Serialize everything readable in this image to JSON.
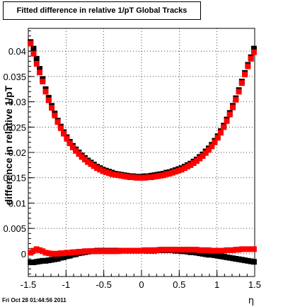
{
  "chart_data": {
    "type": "scatter",
    "title": "Fitted difference in relative 1/pT  Global Tracks",
    "xlabel": "η",
    "ylabel": "difference in relative 1/pT",
    "xlim": [
      -1.5,
      1.5
    ],
    "ylim": [
      -0.0045,
      0.0445
    ],
    "x_ticks": [
      -1.5,
      -1,
      -0.5,
      0,
      0.5,
      1,
      1.5
    ],
    "x_tick_labels": [
      "-1.5",
      "-1",
      "-0.5",
      "0",
      "0.5",
      "1",
      "1.5"
    ],
    "y_ticks": [
      0,
      0.005,
      0.01,
      0.015,
      0.02,
      0.025,
      0.03,
      0.035,
      0.04
    ],
    "y_tick_labels": [
      "0",
      "0.005",
      "0.01",
      "0.015",
      "0.02",
      "0.025",
      "0.03",
      "0.035",
      "0.04"
    ],
    "grid": true,
    "series": [
      {
        "color": "#000000",
        "x": [
          -1.47,
          -1.43,
          -1.39,
          -1.35,
          -1.31,
          -1.27,
          -1.23,
          -1.19,
          -1.15,
          -1.11,
          -1.07,
          -1.03,
          -0.99,
          -0.95,
          -0.91,
          -0.87,
          -0.83,
          -0.79,
          -0.75,
          -0.71,
          -0.67,
          -0.63,
          -0.59,
          -0.55,
          -0.51,
          -0.47,
          -0.43,
          -0.39,
          -0.35,
          -0.31,
          -0.27,
          -0.23,
          -0.19,
          -0.15,
          -0.11,
          -0.07,
          -0.03,
          0.01,
          0.05,
          0.09,
          0.13,
          0.17,
          0.21,
          0.25,
          0.29,
          0.33,
          0.37,
          0.41,
          0.45,
          0.49,
          0.53,
          0.57,
          0.61,
          0.65,
          0.69,
          0.73,
          0.77,
          0.81,
          0.85,
          0.89,
          0.93,
          0.97,
          1.01,
          1.05,
          1.09,
          1.13,
          1.17,
          1.21,
          1.25,
          1.29,
          1.33,
          1.37,
          1.41,
          1.45,
          1.49
        ],
        "y": [
          0.0418,
          0.0405,
          0.0385,
          0.0365,
          0.0345,
          0.0325,
          0.0308,
          0.0292,
          0.0277,
          0.0263,
          0.0251,
          0.024,
          0.023,
          0.0221,
          0.0213,
          0.0206,
          0.02,
          0.0194,
          0.0189,
          0.0184,
          0.018,
          0.0176,
          0.0172,
          0.0169,
          0.0166,
          0.0164,
          0.0162,
          0.016,
          0.0158,
          0.0157,
          0.0156,
          0.0155,
          0.0154,
          0.0153,
          0.0153,
          0.0152,
          0.0152,
          0.0152,
          0.0153,
          0.0153,
          0.0154,
          0.0155,
          0.0156,
          0.0157,
          0.0158,
          0.016,
          0.0161,
          0.0163,
          0.0165,
          0.0167,
          0.0169,
          0.0172,
          0.0175,
          0.0178,
          0.0182,
          0.0186,
          0.0191,
          0.0196,
          0.0202,
          0.0208,
          0.0215,
          0.0223,
          0.0232,
          0.0242,
          0.0253,
          0.0265,
          0.0278,
          0.0292,
          0.0307,
          0.0323,
          0.034,
          0.0357,
          0.0373,
          0.0388,
          0.0405
        ]
      },
      {
        "color": "#ff0000",
        "x": [
          -1.47,
          -1.43,
          -1.39,
          -1.35,
          -1.31,
          -1.27,
          -1.23,
          -1.19,
          -1.15,
          -1.11,
          -1.07,
          -1.03,
          -0.99,
          -0.95,
          -0.91,
          -0.87,
          -0.83,
          -0.79,
          -0.75,
          -0.71,
          -0.67,
          -0.63,
          -0.59,
          -0.55,
          -0.51,
          -0.47,
          -0.43,
          -0.39,
          -0.35,
          -0.31,
          -0.27,
          -0.23,
          -0.19,
          -0.15,
          -0.11,
          -0.07,
          -0.03,
          0.01,
          0.05,
          0.09,
          0.13,
          0.17,
          0.21,
          0.25,
          0.29,
          0.33,
          0.37,
          0.41,
          0.45,
          0.49,
          0.53,
          0.57,
          0.61,
          0.65,
          0.69,
          0.73,
          0.77,
          0.81,
          0.85,
          0.89,
          0.93,
          0.97,
          1.01,
          1.05,
          1.09,
          1.13,
          1.17,
          1.21,
          1.25,
          1.29,
          1.33,
          1.37,
          1.41,
          1.45,
          1.49
        ],
        "y": [
          0.0415,
          0.0395,
          0.0375,
          0.0358,
          0.034,
          0.032,
          0.0303,
          0.0288,
          0.0273,
          0.026,
          0.0248,
          0.0237,
          0.0227,
          0.0218,
          0.021,
          0.0203,
          0.0197,
          0.0191,
          0.0186,
          0.0181,
          0.0177,
          0.0173,
          0.0169,
          0.0166,
          0.0163,
          0.0161,
          0.0159,
          0.0157,
          0.0156,
          0.0155,
          0.0154,
          0.0153,
          0.0152,
          0.0151,
          0.0151,
          0.015,
          0.015,
          0.015,
          0.015,
          0.0151,
          0.0151,
          0.0152,
          0.0153,
          0.0154,
          0.0155,
          0.0157,
          0.0158,
          0.016,
          0.0162,
          0.0164,
          0.0166,
          0.0169,
          0.0172,
          0.0175,
          0.0179,
          0.0183,
          0.0188,
          0.0193,
          0.0199,
          0.0205,
          0.0212,
          0.022,
          0.0229,
          0.0239,
          0.025,
          0.0262,
          0.0275,
          0.0289,
          0.0304,
          0.032,
          0.0337,
          0.0354,
          0.037,
          0.0385,
          0.0398
        ]
      },
      {
        "color": "#000000",
        "x": [
          -1.47,
          -1.43,
          -1.39,
          -1.35,
          -1.31,
          -1.27,
          -1.23,
          -1.19,
          -1.15,
          -1.11,
          -1.07,
          -1.03,
          -0.99,
          -0.95,
          -0.91,
          -0.87,
          -0.83,
          -0.79,
          -0.75,
          -0.71,
          -0.67,
          -0.63,
          -0.59,
          -0.55,
          -0.51,
          -0.47,
          -0.43,
          -0.39,
          -0.35,
          -0.31,
          -0.27,
          -0.23,
          -0.19,
          -0.15,
          -0.11,
          -0.07,
          -0.03,
          0.01,
          0.05,
          0.09,
          0.13,
          0.17,
          0.21,
          0.25,
          0.29,
          0.33,
          0.37,
          0.41,
          0.45,
          0.49,
          0.53,
          0.57,
          0.61,
          0.65,
          0.69,
          0.73,
          0.77,
          0.81,
          0.85,
          0.89,
          0.93,
          0.97,
          1.01,
          1.05,
          1.09,
          1.13,
          1.17,
          1.21,
          1.25,
          1.29,
          1.33,
          1.37,
          1.41,
          1.45,
          1.49
        ],
        "y": [
          -0.0017,
          -0.0017,
          -0.0016,
          -0.0015,
          -0.0014,
          -0.0014,
          -0.0013,
          -0.0012,
          -0.0011,
          -0.001,
          -0.0008,
          -0.0007,
          -0.0005,
          -0.0004,
          -0.0002,
          -0.0001,
          0.0001,
          0.0002,
          0.0003,
          0.0004,
          0.0005,
          0.0005,
          0.0006,
          0.0006,
          0.0006,
          0.0006,
          0.0006,
          0.0006,
          0.0006,
          0.0006,
          0.0006,
          0.0006,
          0.0006,
          0.0006,
          0.0006,
          0.0006,
          0.0006,
          0.0006,
          0.0006,
          0.0006,
          0.0006,
          0.0006,
          0.0007,
          0.0007,
          0.0007,
          0.0007,
          0.0007,
          0.0007,
          0.0006,
          0.0006,
          0.0005,
          0.0005,
          0.0004,
          0.0003,
          0.0003,
          0.0002,
          0.0001,
          0.0,
          -0.0001,
          -0.0002,
          -0.0002,
          -0.0003,
          -0.0004,
          -0.0005,
          -0.0006,
          -0.0007,
          -0.0008,
          -0.0009,
          -0.001,
          -0.0011,
          -0.0012,
          -0.0013,
          -0.0014,
          -0.0015,
          -0.0016
        ]
      },
      {
        "color": "#ff0000",
        "x": [
          -1.47,
          -1.43,
          -1.39,
          -1.35,
          -1.31,
          -1.27,
          -1.23,
          -1.19,
          -1.15,
          -1.11,
          -1.07,
          -1.03,
          -0.99,
          -0.95,
          -0.91,
          -0.87,
          -0.83,
          -0.79,
          -0.75,
          -0.71,
          -0.67,
          -0.63,
          -0.59,
          -0.55,
          -0.51,
          -0.47,
          -0.43,
          -0.39,
          -0.35,
          -0.31,
          -0.27,
          -0.23,
          -0.19,
          -0.15,
          -0.11,
          -0.07,
          -0.03,
          0.01,
          0.05,
          0.09,
          0.13,
          0.17,
          0.21,
          0.25,
          0.29,
          0.33,
          0.37,
          0.41,
          0.45,
          0.49,
          0.53,
          0.57,
          0.61,
          0.65,
          0.69,
          0.73,
          0.77,
          0.81,
          0.85,
          0.89,
          0.93,
          0.97,
          1.01,
          1.05,
          1.09,
          1.13,
          1.17,
          1.21,
          1.25,
          1.29,
          1.33,
          1.37,
          1.41,
          1.45,
          1.49
        ],
        "y": [
          0.0002,
          0.0006,
          0.0009,
          0.0007,
          0.0005,
          0.0002,
          0.0001,
          0.0,
          0.0,
          0.0,
          0.0001,
          0.0001,
          0.0002,
          0.0002,
          0.0003,
          0.0003,
          0.0004,
          0.0004,
          0.0005,
          0.0005,
          0.0005,
          0.0005,
          0.0005,
          0.0005,
          0.0005,
          0.0005,
          0.0005,
          0.0005,
          0.0005,
          0.0005,
          0.0006,
          0.0006,
          0.0006,
          0.0006,
          0.0006,
          0.0006,
          0.0006,
          0.0006,
          0.0007,
          0.0007,
          0.0007,
          0.0007,
          0.0007,
          0.0008,
          0.0008,
          0.0008,
          0.0008,
          0.0008,
          0.0008,
          0.0008,
          0.0008,
          0.0008,
          0.0008,
          0.0008,
          0.0008,
          0.0008,
          0.0007,
          0.0007,
          0.0007,
          0.0007,
          0.0006,
          0.0006,
          0.0006,
          0.0006,
          0.0006,
          0.0007,
          0.0007,
          0.0007,
          0.0008,
          0.0008,
          0.0009,
          0.0009,
          0.0009,
          0.0009,
          0.0009
        ]
      }
    ]
  },
  "footer": {
    "date_label": "Fri Oct 28 01:44:56 2011"
  }
}
